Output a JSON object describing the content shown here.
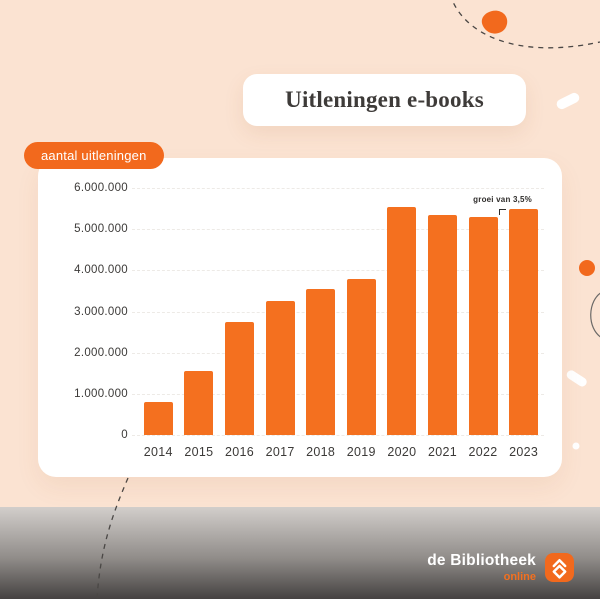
{
  "title_card": {
    "label": "Uitleningen e-books"
  },
  "pill": {
    "label": "aantal uitleningen"
  },
  "chart_data": {
    "type": "bar",
    "title": "Uitleningen e-books",
    "ylabel": "aantal uitleningen",
    "categories": [
      "2014",
      "2015",
      "2016",
      "2017",
      "2018",
      "2019",
      "2020",
      "2021",
      "2022",
      "2023"
    ],
    "values": [
      800000,
      1550000,
      2750000,
      3250000,
      3550000,
      3800000,
      5550000,
      5350000,
      5300000,
      5480000
    ],
    "ylim": [
      0,
      6000000
    ],
    "y_ticks": [
      "6.000.000",
      "5.000.000",
      "4.000.000",
      "3.000.000",
      "2.000.000",
      "1.000.000",
      "0"
    ],
    "grid": "dotted horizontal lines",
    "legend_position": "none",
    "bar_color": "#f4701f",
    "annotation": {
      "text": "groei van 3,5%",
      "target": "2023"
    }
  },
  "footer": {
    "brand": "de Bibliotheek",
    "brand_sub": "online"
  },
  "colors": {
    "background": "#fbe3d2",
    "accent_orange": "#f2691d",
    "bar_orange": "#f4701f",
    "panel": "#ffffff",
    "title_text": "#3e3b39",
    "band_top": "#d2cecb",
    "band_bottom": "#454241"
  }
}
